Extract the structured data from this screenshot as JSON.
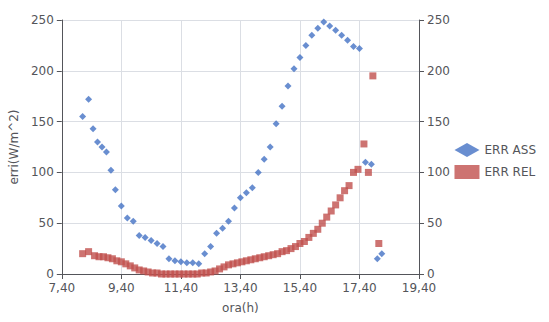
{
  "chart_data": {
    "type": "scatter",
    "xlabel": "ora(h)",
    "ylabel": "erri(W/m^2)",
    "xlim": [
      7.4,
      19.4
    ],
    "xticks": [
      {
        "value": 7.4,
        "label": "7,40"
      },
      {
        "value": 9.4,
        "label": "9,40"
      },
      {
        "value": 11.4,
        "label": "11,40"
      },
      {
        "value": 13.4,
        "label": "13,40"
      },
      {
        "value": 15.4,
        "label": "15,40"
      },
      {
        "value": 17.4,
        "label": "17,40"
      },
      {
        "value": 19.4,
        "label": "19,40"
      }
    ],
    "ylim": [
      0,
      250
    ],
    "yticks": [
      0,
      50,
      100,
      150,
      200,
      250
    ],
    "y2lim": [
      0,
      250
    ],
    "y2ticks": [
      0,
      50,
      100,
      150,
      200,
      250
    ],
    "grid": true,
    "legend": "right",
    "series": [
      {
        "name": "ERR ASS",
        "color": "#4472C4",
        "marker": "diamond",
        "x": [
          8.1,
          8.3,
          8.45,
          8.6,
          8.75,
          8.9,
          9.05,
          9.2,
          9.4,
          9.6,
          9.8,
          10.0,
          10.2,
          10.4,
          10.6,
          10.8,
          11.0,
          11.2,
          11.4,
          11.6,
          11.8,
          12.0,
          12.2,
          12.4,
          12.6,
          12.8,
          13.0,
          13.2,
          13.4,
          13.6,
          13.8,
          14.0,
          14.2,
          14.4,
          14.6,
          14.8,
          15.0,
          15.2,
          15.4,
          15.6,
          15.8,
          16.0,
          16.2,
          16.4,
          16.6,
          16.8,
          17.0,
          17.2,
          17.4,
          17.6,
          17.8,
          18.0,
          18.15
        ],
        "values": [
          155,
          172,
          143,
          130,
          125,
          120,
          102,
          83,
          67,
          55,
          52,
          38,
          36,
          33,
          30,
          27,
          15,
          13,
          12,
          11,
          11,
          10,
          20,
          27,
          40,
          45,
          52,
          65,
          75,
          80,
          85,
          100,
          113,
          125,
          148,
          165,
          185,
          202,
          213,
          225,
          235,
          242,
          248,
          244,
          240,
          235,
          230,
          224,
          222,
          110,
          108,
          15,
          20
        ]
      },
      {
        "name": "ERR REL",
        "color": "#C0504D",
        "marker": "square",
        "axis": "y2",
        "x": [
          8.1,
          8.3,
          8.5,
          8.65,
          8.8,
          8.95,
          9.1,
          9.25,
          9.4,
          9.55,
          9.7,
          9.85,
          10.0,
          10.15,
          10.3,
          10.45,
          10.6,
          10.75,
          10.9,
          11.05,
          11.2,
          11.35,
          11.5,
          11.65,
          11.8,
          11.95,
          12.1,
          12.25,
          12.4,
          12.55,
          12.7,
          12.85,
          13.0,
          13.15,
          13.3,
          13.45,
          13.6,
          13.75,
          13.9,
          14.05,
          14.2,
          14.35,
          14.5,
          14.65,
          14.8,
          14.95,
          15.1,
          15.25,
          15.4,
          15.55,
          15.7,
          15.85,
          16.0,
          16.15,
          16.3,
          16.45,
          16.6,
          16.75,
          16.9,
          17.05,
          17.2,
          17.35,
          17.55,
          17.7,
          17.85,
          18.05
        ],
        "values": [
          20,
          22,
          18,
          17,
          17,
          16,
          15,
          13,
          12,
          10,
          8,
          6,
          4,
          3,
          2,
          1,
          1,
          0,
          0,
          0,
          0,
          0,
          0,
          0,
          0,
          0,
          1,
          1,
          2,
          3,
          5,
          7,
          9,
          10,
          11,
          12,
          13,
          14,
          15,
          16,
          17,
          18,
          19,
          20,
          22,
          23,
          25,
          27,
          30,
          32,
          36,
          40,
          44,
          50,
          56,
          62,
          68,
          75,
          82,
          87,
          100,
          103,
          128,
          100,
          195,
          30
        ]
      }
    ]
  }
}
